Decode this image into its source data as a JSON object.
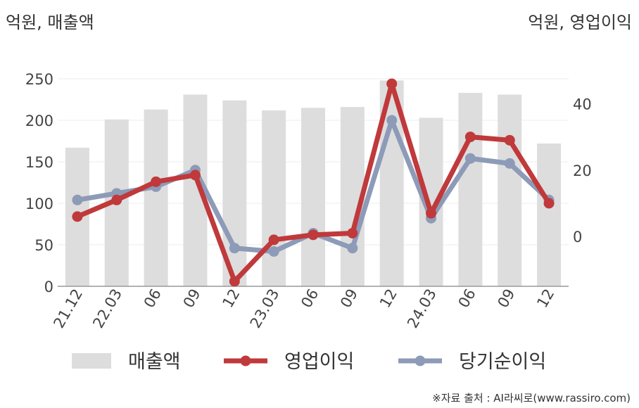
{
  "units": {
    "left": "억원, 매출액",
    "right": "억원, 영업이익"
  },
  "source": "※자료 출처 : AI라씨로(www.rassiro.com)",
  "colors": {
    "bar": "#dddddd",
    "operating": "#c0393b",
    "net": "#8d9bb8",
    "axis": "#999999",
    "grid": "#eeeeee"
  },
  "chart_data": {
    "type": "bar",
    "categories": [
      "21.12",
      "22.03",
      "06",
      "09",
      "12",
      "23.03",
      "06",
      "09",
      "12",
      "24.03",
      "06",
      "09",
      "12"
    ],
    "y_left": {
      "ylim": [
        0,
        250
      ],
      "ticks": [
        0,
        50,
        100,
        150,
        200,
        250
      ]
    },
    "y_right": {
      "ylim": [
        -15,
        47.5
      ],
      "ticks": [
        0,
        20,
        40
      ]
    },
    "series": [
      {
        "name": "매출액",
        "type": "bar",
        "axis": "left",
        "values": [
          167,
          201,
          213,
          231,
          224,
          212,
          215,
          216,
          248,
          203,
          233,
          231,
          172
        ]
      },
      {
        "name": "영업이익",
        "type": "line",
        "axis": "right",
        "values": [
          6,
          11,
          16.5,
          18.5,
          -13.5,
          -1,
          0.5,
          1,
          46,
          7,
          30,
          29,
          10
        ]
      },
      {
        "name": "당기순이익",
        "type": "line",
        "axis": "right",
        "values": [
          11,
          13,
          15,
          20,
          -3.5,
          -4.5,
          1,
          -3.5,
          35,
          5.5,
          23.5,
          22,
          11
        ]
      }
    ]
  }
}
